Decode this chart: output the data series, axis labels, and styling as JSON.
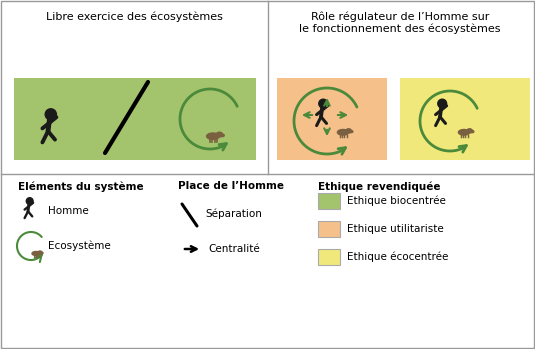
{
  "panel_left_title": "Libre exercice des écosystèmes",
  "panel_right_title": "Rôle régulateur de l’Homme sur\nle fonctionnement des écosystèmes",
  "color_green": "#a3c46c",
  "color_orange": "#f5c08a",
  "color_yellow": "#f0e87a",
  "color_border": "#999999",
  "color_arrow": "#4a8a3a",
  "color_person": "#1a1a1a",
  "color_animal": "#7a6040",
  "bg_white": "#ffffff",
  "legend_elements_title": "Eléments du système",
  "legend_place_title": "Place de l’Homme",
  "legend_ethique_title": "Ethique revendiquée",
  "legend_homme": "Homme",
  "legend_ecosysteme": "Ecosystème",
  "legend_separation": "Séparation",
  "legend_centralite": "Centralité",
  "legend_biocentree": "Ethique biocentrée",
  "legend_utilitariste": "Ethique utilitariste",
  "legend_ecocentree": "Ethique écocentrée"
}
